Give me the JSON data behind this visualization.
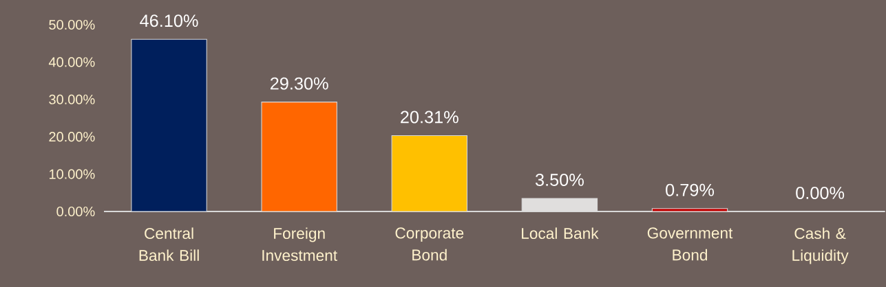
{
  "chart_data": {
    "type": "bar",
    "categories": [
      "Central Bank Bill",
      "Foreign Investment",
      "Corporate Bond",
      "Local Bank",
      "Government Bond",
      "Cash & Liquidity"
    ],
    "values": [
      46.1,
      29.3,
      20.31,
      3.5,
      0.79,
      0.0
    ],
    "colors": [
      "#001f5c",
      "#ff6600",
      "#ffc000",
      "#e0dedd",
      "#c00000",
      "#808080"
    ],
    "value_labels": [
      "46.10%",
      "29.30%",
      "20.31%",
      "3.50%",
      "0.79%",
      "0.00%"
    ],
    "ylim": [
      0,
      50
    ],
    "yticks": [
      {
        "value": 0,
        "label": "0.00%"
      },
      {
        "value": 10,
        "label": "10.00%"
      },
      {
        "value": 20,
        "label": "20.00%"
      },
      {
        "value": 30,
        "label": "30.00%"
      },
      {
        "value": 40,
        "label": "40.00%"
      },
      {
        "value": 50,
        "label": "50.00%"
      }
    ]
  }
}
